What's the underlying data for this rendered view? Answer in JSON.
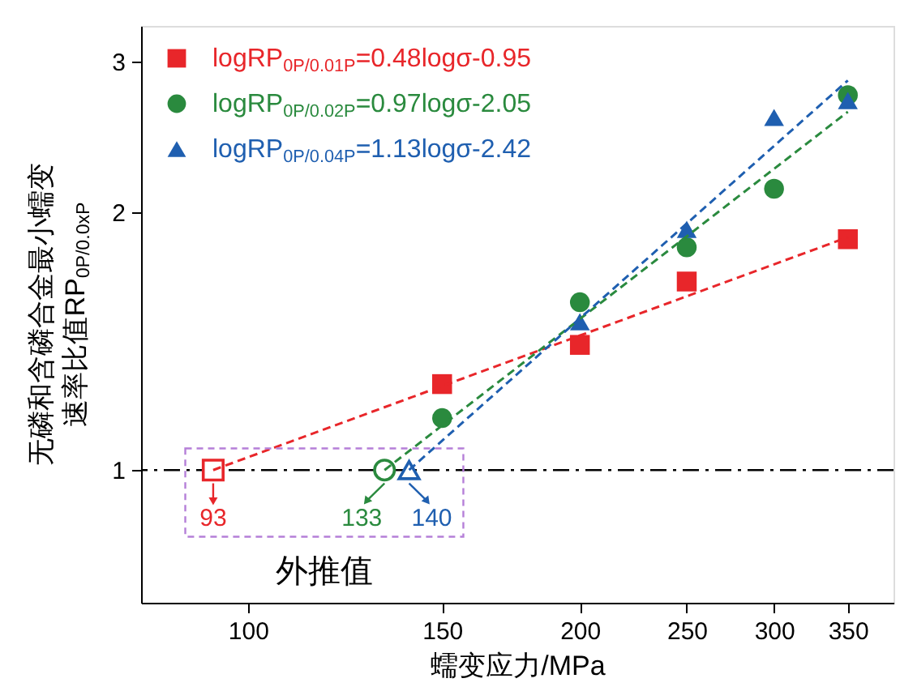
{
  "chart_data": {
    "type": "scatter",
    "xlabel": "蠕变应力/MPa",
    "ylabel": "无磷和含磷合金最小蠕变速率比值RP$_{0P/0.0xP}$",
    "log": "xy",
    "xlim": [
      80,
      385
    ],
    "xticks": [
      100,
      150,
      200,
      250,
      300,
      350
    ],
    "ylim": [
      0.7,
      3.3
    ],
    "yticks": [
      1,
      2,
      3
    ],
    "grid": false,
    "legend": "top left",
    "series": [
      {
        "name": "logRP$_{0P/0.01P}$=0.48logσ-0.95",
        "color": "#e8262a",
        "marker": "square",
        "x": [
          150,
          200,
          250,
          350
        ],
        "values": [
          1.26,
          1.4,
          1.66,
          1.86
        ]
      },
      {
        "name": "logRP$_{0P/0.02P}$=0.97logσ-2.05",
        "color": "#2a8a3e",
        "marker": "circle",
        "x": [
          150,
          200,
          250,
          300,
          350
        ],
        "values": [
          1.15,
          1.57,
          1.82,
          2.13,
          2.74
        ]
      },
      {
        "name": "logRP$_{0P/0.04P}$=1.13logσ-2.42",
        "color": "#1f5fb0",
        "marker": "triangle",
        "x": [
          200,
          250,
          300,
          350
        ],
        "values": [
          1.49,
          1.91,
          2.58,
          2.7
        ]
      },
      {
        "type": "scatter",
        "color": "#e8262a",
        "marker": "square",
        "x": [
          93
        ],
        "values": [
          1
        ]
      },
      {
        "type": "scatter",
        "color": "#2a8a3e",
        "marker": "circle",
        "x": [
          133
        ],
        "values": [
          1
        ]
      },
      {
        "type": "scatter",
        "color": "#1f5fb0",
        "marker": "triangle",
        "x": [
          140
        ],
        "values": [
          1
        ]
      },
      {
        "type": "line",
        "color": "#e8262a",
        "line_style": "dashed",
        "x": [
          93,
          350
        ],
        "values": [
          1.0,
          1.87
        ]
      },
      {
        "type": "line",
        "color": "#2a8a3e",
        "line_style": "dashed",
        "x": [
          133,
          350
        ],
        "values": [
          1.0,
          2.62
        ]
      },
      {
        "type": "line",
        "color": "#1f5fb0",
        "line_style": "dashed",
        "x": [
          140,
          350
        ],
        "values": [
          1.0,
          2.85
        ]
      }
    ],
    "ref_lines": [
      {
        "axis": "y",
        "value": 1,
        "color": "#000000",
        "line_style": "dashdot"
      }
    ],
    "annotations": [
      {
        "text": "93",
        "x": 93,
        "y": 1
      },
      {
        "text": "133",
        "x": 133,
        "y": 1
      },
      {
        "text": "140",
        "x": 140,
        "y": 1
      },
      "外推值"
    ]
  }
}
